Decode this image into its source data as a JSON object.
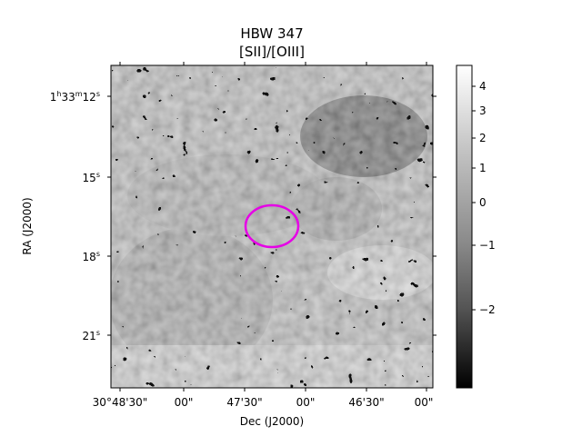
{
  "title": {
    "line1": "HBW 347",
    "line2": "[SII]/[OIII]"
  },
  "axes": {
    "xlabel": "Dec (J2000)",
    "ylabel": "RA (J2000)",
    "x_ticks": [
      "30°48'30\"",
      "00\"",
      "47'30\"",
      "00\"",
      "46'30\"",
      "00\""
    ],
    "y_ticks": [
      {
        "h": "1",
        "m": "33",
        "s": "12"
      },
      {
        "s": "15"
      },
      {
        "s": "18"
      },
      {
        "s": "21"
      }
    ]
  },
  "colorbar": {
    "colormap": "gray",
    "ticks": [
      "4",
      "3",
      "2",
      "1",
      "0",
      "−1",
      "−2"
    ],
    "tick_values": [
      4,
      3,
      2,
      1,
      0,
      -1,
      -2
    ],
    "range": [
      -3,
      4.6
    ]
  },
  "annotation": {
    "shape": "ellipse",
    "color": "#e600e6"
  }
}
